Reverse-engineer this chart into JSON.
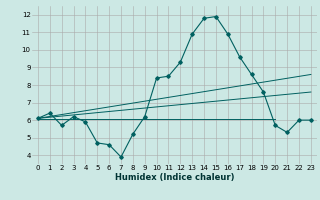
{
  "xlabel": "Humidex (Indice chaleur)",
  "bg_color": "#cce8e4",
  "grid_color": "#aaaaaa",
  "line_color": "#006060",
  "xlim": [
    -0.5,
    23.5
  ],
  "ylim": [
    3.5,
    12.5
  ],
  "xticks": [
    0,
    1,
    2,
    3,
    4,
    5,
    6,
    7,
    8,
    9,
    10,
    11,
    12,
    13,
    14,
    15,
    16,
    17,
    18,
    19,
    20,
    21,
    22,
    23
  ],
  "yticks": [
    4,
    5,
    6,
    7,
    8,
    9,
    10,
    11,
    12
  ],
  "main_x": [
    0,
    1,
    2,
    3,
    4,
    5,
    6,
    7,
    8,
    9,
    10,
    11,
    12,
    13,
    14,
    15,
    16,
    17,
    18,
    19,
    20,
    21,
    22,
    23
  ],
  "main_y": [
    6.1,
    6.4,
    5.7,
    6.2,
    5.9,
    4.7,
    4.6,
    3.9,
    5.2,
    6.2,
    8.4,
    8.5,
    9.3,
    10.9,
    11.8,
    11.9,
    10.9,
    9.6,
    8.6,
    7.6,
    5.7,
    5.3,
    6.0,
    6.0
  ],
  "trend1_x": [
    0,
    23
  ],
  "trend1_y": [
    6.1,
    8.6
  ],
  "trend2_x": [
    0,
    23
  ],
  "trend2_y": [
    6.1,
    7.6
  ],
  "trend3_x": [
    0,
    20
  ],
  "trend3_y": [
    6.05,
    6.05
  ]
}
